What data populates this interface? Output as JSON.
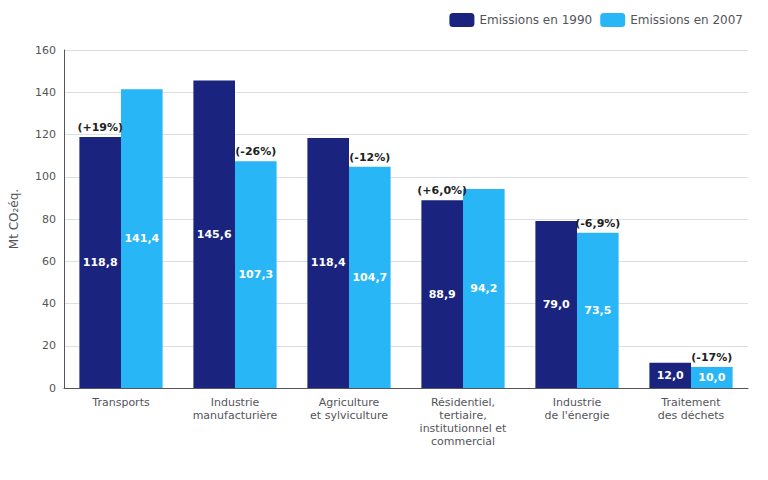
{
  "chart_data": {
    "type": "bar",
    "categories": [
      "Transports",
      "Industrie\nmanufacturière",
      "Agriculture\net sylviculture",
      "Résidentiel,\ntertiaire,\ninstitutionnel et\ncommercial",
      "Industrie\nde l'énergie",
      "Traitement\ndes déchets"
    ],
    "series": [
      {
        "name": "Emissions en 1990",
        "color": "#1a237e",
        "values": [
          118.8,
          145.6,
          118.4,
          88.9,
          79.0,
          12.0
        ],
        "value_labels": [
          "118,8",
          "145,6",
          "118,4",
          "88,9",
          "79,0",
          "12,0"
        ]
      },
      {
        "name": "Emissions en 2007",
        "color": "#29b6f6",
        "values": [
          141.4,
          107.3,
          104.7,
          94.2,
          73.5,
          10.0
        ],
        "value_labels": [
          "141,4",
          "107,3",
          "104,7",
          "94,2",
          "73,5",
          "10,0"
        ]
      }
    ],
    "annotations": [
      {
        "text": "(+19%)",
        "category": "Transports",
        "series": "Emissions en 1990"
      },
      {
        "text": "(-26%)",
        "category": "Industrie\nmanufacturière",
        "series": "Emissions en 2007"
      },
      {
        "text": "(-12%)",
        "category": "Agriculture\net sylviculture",
        "series": "Emissions en 2007"
      },
      {
        "text": "(+6,0%)",
        "category": "Résidentiel,\ntertiaire,\ninstitutionnel et\ncommercial",
        "series": "Emissions en 1990"
      },
      {
        "text": "(-6,9%)",
        "category": "Industrie\nde l'énergie",
        "series": "Emissions en 2007"
      },
      {
        "text": "(-17%)",
        "category": "Traitement\ndes déchets",
        "series": "Emissions en 2007"
      }
    ],
    "ylabel": "Mt CO₂éq.",
    "ylim": [
      0,
      160
    ],
    "yticks": [
      0,
      20,
      40,
      60,
      80,
      100,
      120,
      140,
      160
    ],
    "grid": true,
    "legend": "upper right",
    "data_labels": true
  }
}
